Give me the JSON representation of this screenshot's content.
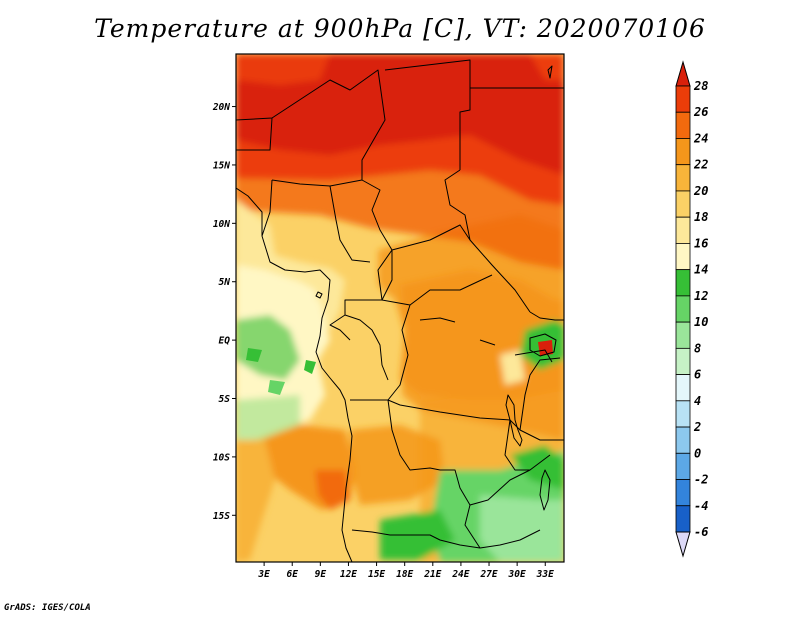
{
  "title": "Temperature at 900hPa [C], VT: 2020070106",
  "credit": "GrADS: IGES/COLA",
  "map": {
    "lon_range": [
      0,
      35
    ],
    "lat_range": [
      -19,
      24.5
    ],
    "lat_ticks": [
      {
        "value": 20,
        "label": "20N"
      },
      {
        "value": 15,
        "label": "15N"
      },
      {
        "value": 10,
        "label": "10N"
      },
      {
        "value": 5,
        "label": "5N"
      },
      {
        "value": 0,
        "label": "EQ"
      },
      {
        "value": -5,
        "label": "5S"
      },
      {
        "value": -10,
        "label": "10S"
      },
      {
        "value": -15,
        "label": "15S"
      }
    ],
    "lon_ticks": [
      {
        "value": 3,
        "label": "3E"
      },
      {
        "value": 6,
        "label": "6E"
      },
      {
        "value": 9,
        "label": "9E"
      },
      {
        "value": 12,
        "label": "12E"
      },
      {
        "value": 15,
        "label": "15E"
      },
      {
        "value": 18,
        "label": "18E"
      },
      {
        "value": 21,
        "label": "21E"
      },
      {
        "value": 24,
        "label": "24E"
      },
      {
        "value": 27,
        "label": "27E"
      },
      {
        "value": 30,
        "label": "30E"
      },
      {
        "value": 33,
        "label": "33E"
      }
    ]
  },
  "colorbar": {
    "labels": [
      "28",
      "26",
      "24",
      "22",
      "20",
      "18",
      "16",
      "14",
      "12",
      "10",
      "8",
      "6",
      "4",
      "2",
      "0",
      "-2",
      "-4",
      "-6"
    ],
    "colors_top_to_bottom": [
      "#d9200b",
      "#ec3d09",
      "#f26a0e",
      "#f5961b",
      "#f8b43a",
      "#fbd166",
      "#fde89a",
      "#fff7c4",
      "#36bf36",
      "#66d466",
      "#9ae59a",
      "#c6f2c6",
      "#e4f7fb",
      "#b8e2f5",
      "#8cc8ee",
      "#5ca8e6",
      "#3384dc",
      "#1860c8",
      "#0a40b0",
      "#0a1e80"
    ],
    "lower_triangle_color": "#ddd9f7"
  }
}
